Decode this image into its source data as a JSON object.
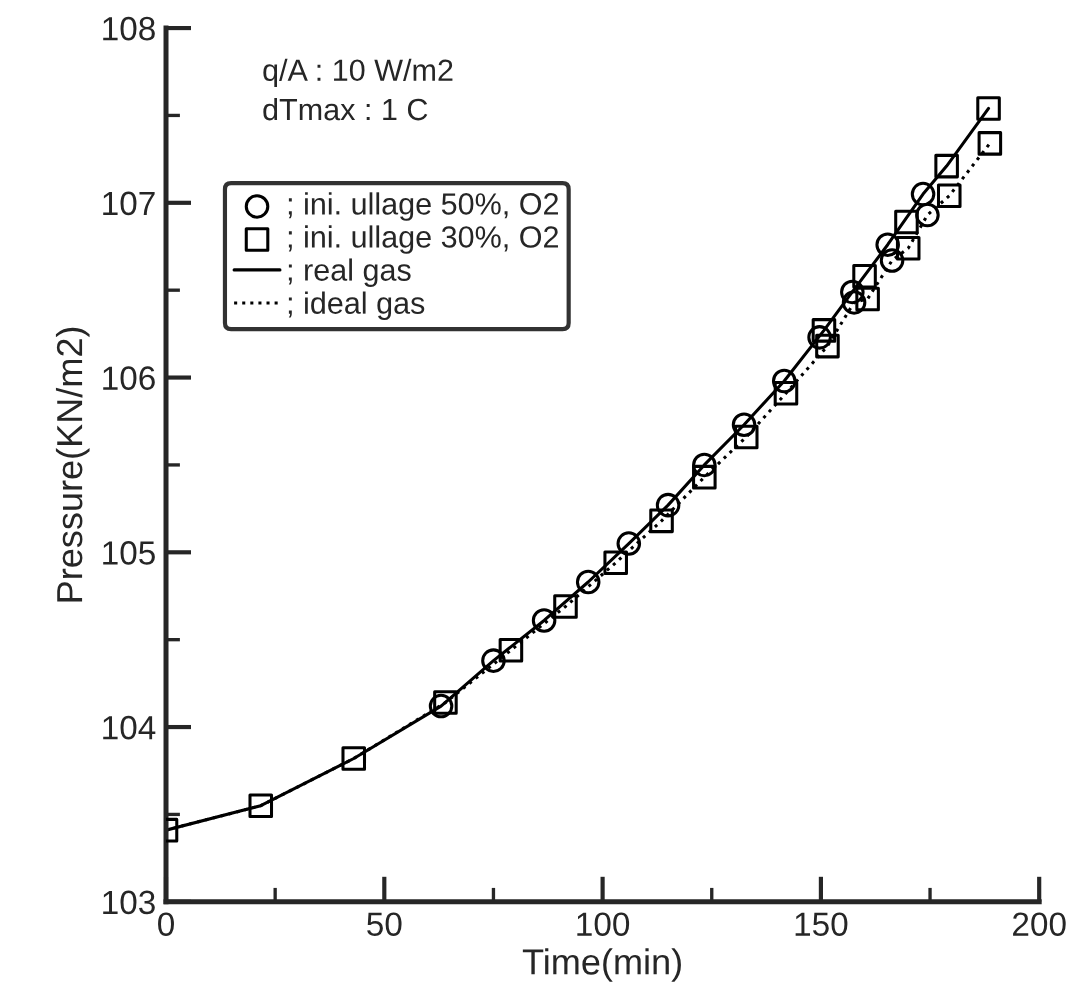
{
  "chart_data": {
    "type": "line",
    "xlabel": "Time(min)",
    "ylabel": "Pressure(KN/m2)",
    "annotations": [
      "q/A : 10 W/m2",
      "dTmax : 1 C"
    ],
    "xlim": [
      0,
      200
    ],
    "xticks": [
      0,
      50,
      100,
      150,
      200
    ],
    "ylim": [
      103,
      108
    ],
    "yticks": [
      103,
      104,
      105,
      106,
      107,
      108
    ],
    "grid": false,
    "legend": "top left",
    "series": [
      {
        "name": "; ini. ullage 50%, O2",
        "type": "scatter",
        "marker": "circle",
        "color": "#000000",
        "x": [
          63,
          75,
          86.6,
          96.7,
          106,
          115,
          123.3,
          132.4,
          141.6,
          149.7,
          157.2,
          165.3,
          173.4,
          157.6,
          166.3,
          174.4
        ],
        "values": [
          104.12,
          104.38,
          104.61,
          104.83,
          105.05,
          105.27,
          105.5,
          105.73,
          105.98,
          106.23,
          106.49,
          106.76,
          107.05,
          106.43,
          106.67,
          106.93
        ]
      },
      {
        "name": "; ini. ullage 30%, O2",
        "type": "scatter",
        "marker": "square",
        "color": "#000000",
        "x": [
          0,
          21.7,
          43,
          64,
          79,
          91.5,
          103,
          113.5,
          123.3,
          132.9,
          142,
          151.5,
          150.7,
          160.7,
          160,
          170,
          169.6,
          179.4,
          178.8,
          188.4,
          188.7
        ],
        "values": [
          103.41,
          103.55,
          103.82,
          104.14,
          104.44,
          104.69,
          104.94,
          105.18,
          105.43,
          105.66,
          105.91,
          106.18,
          106.27,
          106.45,
          106.58,
          106.74,
          106.89,
          107.04,
          107.21,
          107.54,
          107.34
        ]
      },
      {
        "name": "; real gas",
        "line_style": "solid",
        "color": "#000000",
        "x": [
          0,
          21.7,
          43,
          63,
          75,
          86.6,
          96.7,
          106,
          115,
          123.3,
          132.4,
          141.6,
          150.7,
          157.2,
          165.3,
          173.4,
          178.8,
          188.4
        ],
        "values": [
          103.41,
          103.55,
          103.82,
          104.12,
          104.38,
          104.61,
          104.83,
          105.05,
          105.27,
          105.5,
          105.73,
          105.98,
          106.27,
          106.49,
          106.76,
          107.05,
          107.21,
          107.54
        ]
      },
      {
        "name": "; ideal gas",
        "line_style": "dotted",
        "color": "#000000",
        "x": [
          0,
          21.7,
          43,
          64,
          79,
          91.5,
          103,
          113.5,
          123.3,
          132.9,
          142,
          151.5,
          157.6,
          160.7,
          166.3,
          170,
          174.4,
          179.4,
          188.7
        ],
        "values": [
          103.41,
          103.55,
          103.82,
          104.14,
          104.44,
          104.69,
          104.94,
          105.18,
          105.43,
          105.66,
          105.91,
          106.18,
          106.43,
          106.45,
          106.67,
          106.74,
          106.93,
          107.04,
          107.34
        ]
      }
    ]
  }
}
